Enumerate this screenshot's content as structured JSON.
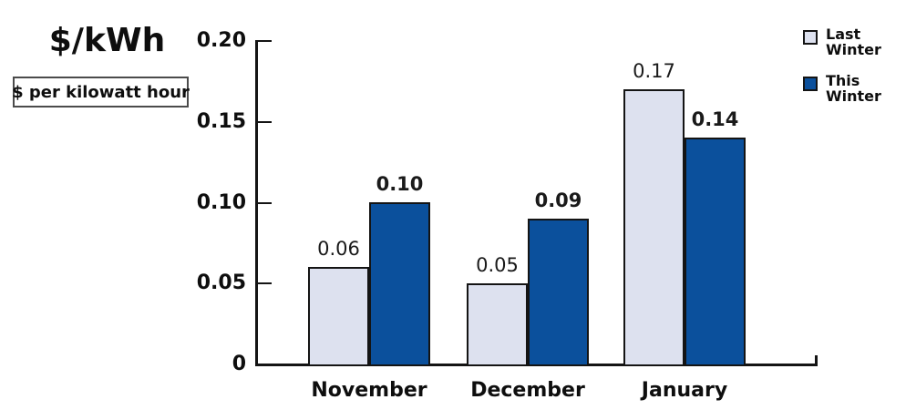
{
  "chart_data": {
    "type": "bar",
    "title": "$/kWh",
    "subtitle": "$ per kilowatt hour",
    "categories": [
      "November",
      "December",
      "January"
    ],
    "series": [
      {
        "name": "Last Winter",
        "name_lines": [
          "Last",
          "Winter"
        ],
        "values": [
          0.06,
          0.05,
          0.17
        ],
        "value_labels": [
          "0.06",
          "0.05",
          "0.17"
        ],
        "color": "#dde1ef",
        "value_label_bold": false
      },
      {
        "name": "This Winter",
        "name_lines": [
          "This",
          "Winter"
        ],
        "values": [
          0.1,
          0.09,
          0.14
        ],
        "value_labels": [
          "0.10",
          "0.09",
          "0.14"
        ],
        "color": "#0b509c",
        "value_label_bold": true
      }
    ],
    "ylim": [
      0,
      0.2
    ],
    "yticks": [
      {
        "value": 0.0,
        "label": "0"
      },
      {
        "value": 0.05,
        "label": "0.05"
      },
      {
        "value": 0.1,
        "label": "0.10"
      },
      {
        "value": 0.15,
        "label": "0.15"
      },
      {
        "value": 0.2,
        "label": "0.20"
      }
    ],
    "xlabel": "",
    "ylabel": "",
    "grid": false,
    "legend_position": "top-right",
    "colors": {
      "bar_border": "#141414",
      "axis": "#141414",
      "text": "#0e0e0e"
    }
  }
}
